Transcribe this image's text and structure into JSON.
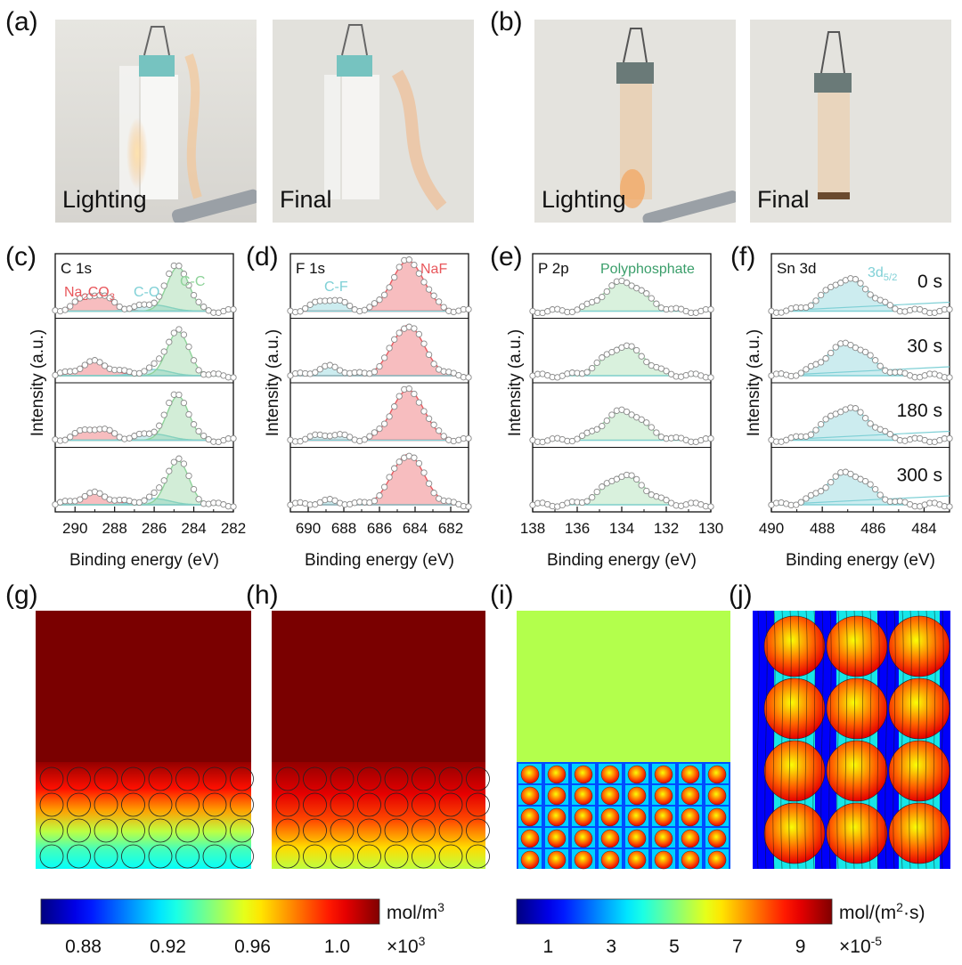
{
  "panel_labels": [
    "(a)",
    "(b)",
    "(c)",
    "(d)",
    "(e)",
    "(f)",
    "(g)",
    "(h)",
    "(i)",
    "(j)"
  ],
  "photos": {
    "a_left_caption": "Lighting",
    "a_right_caption": "Final",
    "b_left_caption": "Lighting",
    "b_right_caption": "Final"
  },
  "xps_common": {
    "ylabel": "Intensity (a.u.)",
    "xlabel": "Binding energy (eV)"
  },
  "chart_data": [
    {
      "type": "line",
      "panel": "c",
      "element": "C 1s",
      "peak_labels": [
        {
          "text": "Na",
          "sub": "2",
          "text2": "CO",
          "sub2": "3",
          "color": "#e8565b"
        },
        {
          "text": "C-O",
          "color": "#7fd0d6"
        },
        {
          "text": "C-C",
          "color": "#8fd39a"
        }
      ],
      "xlim": [
        291,
        282
      ],
      "xticks": [
        290,
        288,
        286,
        284,
        282
      ],
      "peaks_eV": [
        289.0,
        286.0,
        284.8
      ],
      "traces": 4
    },
    {
      "type": "line",
      "panel": "d",
      "element": "F 1s",
      "peak_labels": [
        {
          "text": "C-F",
          "color": "#7fd0d6"
        },
        {
          "text": "NaF",
          "color": "#e8565b"
        }
      ],
      "xlim": [
        691,
        681
      ],
      "xticks": [
        690,
        688,
        686,
        684,
        682
      ],
      "peaks_eV": [
        688.8,
        684.4
      ],
      "traces": 4
    },
    {
      "type": "line",
      "panel": "e",
      "element": "P 2p",
      "peak_labels": [
        {
          "text": "Polyphosphate",
          "color": "#3a9e6a"
        }
      ],
      "xlim": [
        138,
        130
      ],
      "xticks": [
        138,
        136,
        134,
        132,
        130
      ],
      "peaks_eV": [
        133.9
      ],
      "traces": 4
    },
    {
      "type": "line",
      "panel": "f",
      "element": "Sn 3d",
      "peak_labels": [
        {
          "text": "3d",
          "sub": "5/2",
          "color": "#7fd0d6"
        }
      ],
      "series_labels": [
        "0 s",
        "30 s",
        "180 s",
        "300 s"
      ],
      "xlim": [
        490,
        483
      ],
      "xticks": [
        490,
        488,
        486,
        484
      ],
      "peaks_eV": [
        487.0
      ],
      "traces": 4
    },
    {
      "type": "heatmap",
      "panels": [
        "g",
        "h"
      ],
      "colorbar": {
        "ticks": [
          "0.88",
          "0.92",
          "0.96",
          "1.0"
        ],
        "range": [
          0.86,
          1.02
        ],
        "unit": "mol/m",
        "unit_sup": "3",
        "multiplier": "×10",
        "multiplier_sup": "3"
      }
    },
    {
      "type": "heatmap",
      "panels": [
        "i",
        "j"
      ],
      "colorbar": {
        "ticks": [
          "1",
          "3",
          "5",
          "7",
          "9"
        ],
        "range": [
          0,
          10
        ],
        "unit": "mol/(m",
        "unit_sup": "2",
        "unit_tail": "·s)",
        "multiplier": "×10",
        "multiplier_sup": "-5"
      }
    }
  ]
}
